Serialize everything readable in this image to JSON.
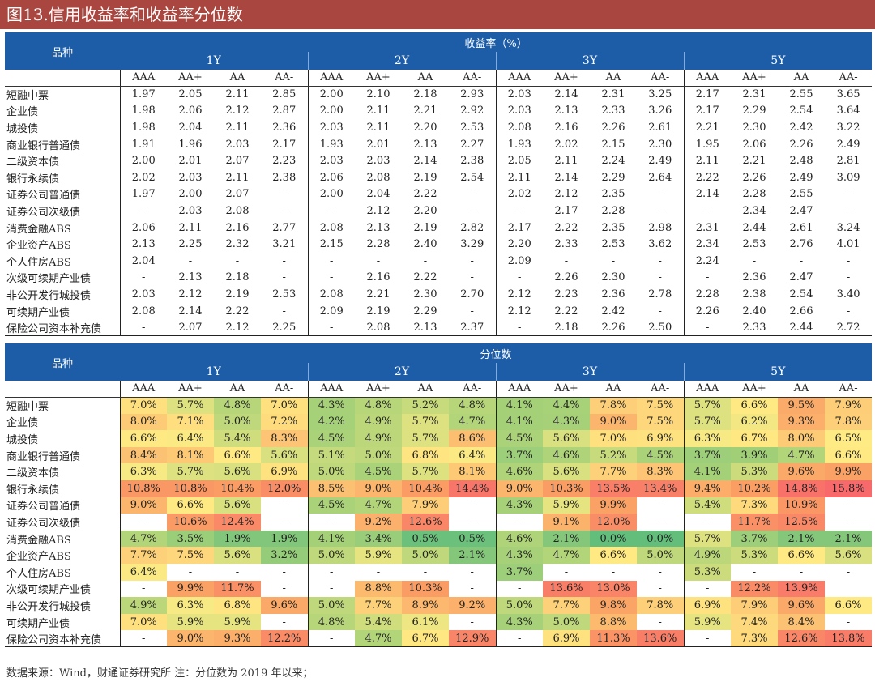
{
  "title": "图13.信用收益率和收益率分位数",
  "table1": {
    "corner": "品种",
    "section": "收益率（%）",
    "terms": [
      "1Y",
      "2Y",
      "3Y",
      "5Y"
    ],
    "ratings": [
      "AAA",
      "AA+",
      "AA",
      "AA-"
    ],
    "rows": [
      {
        "name": "短融中票",
        "v": [
          "1.97",
          "2.05",
          "2.11",
          "2.85",
          "2.00",
          "2.10",
          "2.18",
          "2.93",
          "2.03",
          "2.14",
          "2.31",
          "3.25",
          "2.17",
          "2.31",
          "2.55",
          "3.65"
        ]
      },
      {
        "name": "企业债",
        "v": [
          "1.98",
          "2.06",
          "2.12",
          "2.87",
          "2.00",
          "2.11",
          "2.21",
          "2.92",
          "2.03",
          "2.13",
          "2.33",
          "3.26",
          "2.17",
          "2.29",
          "2.54",
          "3.64"
        ]
      },
      {
        "name": "城投债",
        "v": [
          "1.98",
          "2.04",
          "2.11",
          "2.36",
          "2.03",
          "2.11",
          "2.20",
          "2.53",
          "2.08",
          "2.16",
          "2.26",
          "2.61",
          "2.21",
          "2.30",
          "2.42",
          "3.22"
        ]
      },
      {
        "name": "商业银行普通债",
        "v": [
          "1.91",
          "1.96",
          "2.03",
          "2.17",
          "1.93",
          "2.01",
          "2.13",
          "2.27",
          "1.93",
          "2.02",
          "2.15",
          "2.30",
          "1.95",
          "2.06",
          "2.26",
          "2.49"
        ]
      },
      {
        "name": "二级资本债",
        "v": [
          "2.00",
          "2.01",
          "2.07",
          "2.23",
          "2.03",
          "2.03",
          "2.14",
          "2.38",
          "2.05",
          "2.11",
          "2.24",
          "2.49",
          "2.11",
          "2.21",
          "2.48",
          "2.81"
        ]
      },
      {
        "name": "银行永续债",
        "v": [
          "2.02",
          "2.03",
          "2.11",
          "2.38",
          "2.06",
          "2.08",
          "2.19",
          "2.54",
          "2.11",
          "2.14",
          "2.29",
          "2.64",
          "2.22",
          "2.26",
          "2.49",
          "3.09"
        ]
      },
      {
        "name": "证券公司普通债",
        "v": [
          "1.97",
          "2.00",
          "2.07",
          "-",
          "2.00",
          "2.04",
          "2.22",
          "-",
          "2.02",
          "2.12",
          "2.35",
          "-",
          "2.14",
          "2.28",
          "2.55",
          "-"
        ]
      },
      {
        "name": "证券公司次级债",
        "v": [
          "-",
          "2.03",
          "2.08",
          "-",
          "-",
          "2.12",
          "2.20",
          "-",
          "-",
          "2.17",
          "2.28",
          "-",
          "-",
          "2.34",
          "2.47",
          "-"
        ]
      },
      {
        "name": "消费金融ABS",
        "v": [
          "2.06",
          "2.11",
          "2.16",
          "2.77",
          "2.08",
          "2.13",
          "2.19",
          "2.82",
          "2.17",
          "2.22",
          "2.35",
          "2.98",
          "2.31",
          "2.44",
          "2.61",
          "3.24"
        ]
      },
      {
        "name": "企业资产ABS",
        "v": [
          "2.13",
          "2.25",
          "2.32",
          "3.21",
          "2.15",
          "2.28",
          "2.40",
          "3.29",
          "2.20",
          "2.33",
          "2.53",
          "3.62",
          "2.34",
          "2.53",
          "2.76",
          "4.01"
        ]
      },
      {
        "name": "个人住房ABS",
        "v": [
          "2.04",
          "-",
          "-",
          "-",
          "-",
          "-",
          "-",
          "-",
          "2.09",
          "-",
          "-",
          "-",
          "2.24",
          "-",
          "-",
          "-"
        ]
      },
      {
        "name": "次级可续期产业债",
        "v": [
          "-",
          "2.13",
          "2.18",
          "-",
          "-",
          "2.16",
          "2.22",
          "-",
          "-",
          "2.26",
          "2.30",
          "-",
          "-",
          "2.36",
          "2.47",
          "-"
        ]
      },
      {
        "name": "非公开发行城投债",
        "v": [
          "2.03",
          "2.12",
          "2.19",
          "2.53",
          "2.08",
          "2.21",
          "2.30",
          "2.70",
          "2.12",
          "2.23",
          "2.36",
          "2.78",
          "2.28",
          "2.38",
          "2.54",
          "3.40"
        ]
      },
      {
        "name": "可续期产业债",
        "v": [
          "2.08",
          "2.14",
          "2.22",
          "-",
          "2.09",
          "2.19",
          "2.29",
          "-",
          "2.12",
          "2.22",
          "2.42",
          "-",
          "2.26",
          "2.40",
          "2.66",
          "-"
        ]
      },
      {
        "name": "保险公司资本补充债",
        "v": [
          "-",
          "2.07",
          "2.12",
          "2.25",
          "-",
          "2.08",
          "2.13",
          "2.37",
          "-",
          "2.18",
          "2.26",
          "2.50",
          "-",
          "2.33",
          "2.44",
          "2.72"
        ]
      }
    ]
  },
  "table2": {
    "corner": "品种",
    "section": "分位数",
    "terms": [
      "1Y",
      "2Y",
      "3Y",
      "5Y"
    ],
    "ratings": [
      "AAA",
      "AA+",
      "AA",
      "AA-"
    ],
    "rows": [
      {
        "name": "短融中票",
        "v": [
          "7.0%",
          "5.7%",
          "4.8%",
          "7.0%",
          "4.3%",
          "4.8%",
          "5.2%",
          "4.8%",
          "4.1%",
          "4.4%",
          "7.8%",
          "7.5%",
          "5.7%",
          "6.6%",
          "9.5%",
          "7.9%"
        ]
      },
      {
        "name": "企业债",
        "v": [
          "8.0%",
          "7.1%",
          "5.0%",
          "7.2%",
          "4.2%",
          "4.9%",
          "5.7%",
          "4.7%",
          "4.1%",
          "4.3%",
          "9.0%",
          "7.5%",
          "5.7%",
          "6.2%",
          "9.3%",
          "7.8%"
        ]
      },
      {
        "name": "城投债",
        "v": [
          "6.6%",
          "6.4%",
          "5.4%",
          "8.3%",
          "4.5%",
          "4.9%",
          "5.7%",
          "8.6%",
          "4.5%",
          "5.6%",
          "7.0%",
          "6.9%",
          "6.3%",
          "6.7%",
          "8.0%",
          "6.5%"
        ]
      },
      {
        "name": "商业银行普通债",
        "v": [
          "8.4%",
          "8.1%",
          "6.6%",
          "5.6%",
          "5.1%",
          "5.0%",
          "6.8%",
          "6.4%",
          "3.7%",
          "4.6%",
          "5.2%",
          "4.5%",
          "3.7%",
          "3.9%",
          "4.7%",
          "6.6%"
        ]
      },
      {
        "name": "二级资本债",
        "v": [
          "6.3%",
          "5.7%",
          "5.6%",
          "6.9%",
          "5.0%",
          "4.5%",
          "5.7%",
          "8.1%",
          "4.6%",
          "5.6%",
          "7.7%",
          "8.3%",
          "4.1%",
          "5.3%",
          "9.6%",
          "9.9%"
        ]
      },
      {
        "name": "银行永续债",
        "v": [
          "10.8%",
          "10.8%",
          "10.4%",
          "12.0%",
          "8.5%",
          "9.0%",
          "10.4%",
          "14.4%",
          "9.0%",
          "10.3%",
          "13.5%",
          "13.4%",
          "9.4%",
          "10.2%",
          "14.8%",
          "15.8%"
        ]
      },
      {
        "name": "证券公司普通债",
        "v": [
          "9.0%",
          "6.6%",
          "5.6%",
          "-",
          "4.5%",
          "4.7%",
          "7.9%",
          "-",
          "4.3%",
          "5.9%",
          "9.9%",
          "-",
          "5.4%",
          "7.3%",
          "10.9%",
          "-"
        ]
      },
      {
        "name": "证券公司次级债",
        "v": [
          "-",
          "10.6%",
          "12.4%",
          "-",
          "-",
          "9.2%",
          "12.6%",
          "-",
          "-",
          "9.1%",
          "12.0%",
          "-",
          "-",
          "11.7%",
          "12.5%",
          "-"
        ]
      },
      {
        "name": "消费金融ABS",
        "v": [
          "4.7%",
          "3.5%",
          "1.9%",
          "1.9%",
          "4.1%",
          "3.4%",
          "0.5%",
          "0.5%",
          "4.6%",
          "2.1%",
          "0.0%",
          "0.0%",
          "5.7%",
          "3.7%",
          "2.1%",
          "2.1%"
        ]
      },
      {
        "name": "企业资产ABS",
        "v": [
          "7.7%",
          "7.5%",
          "5.6%",
          "3.2%",
          "5.0%",
          "5.9%",
          "5.0%",
          "2.1%",
          "4.3%",
          "4.7%",
          "6.6%",
          "5.0%",
          "4.9%",
          "5.3%",
          "6.6%",
          "5.6%"
        ]
      },
      {
        "name": "个人住房ABS",
        "v": [
          "6.4%",
          "-",
          "-",
          "-",
          "-",
          "-",
          "-",
          "-",
          "3.7%",
          "-",
          "-",
          "-",
          "5.3%",
          "-",
          "-",
          "-"
        ]
      },
      {
        "name": "次级可续期产业债",
        "v": [
          "-",
          "9.9%",
          "11.7%",
          "-",
          "-",
          "8.8%",
          "10.3%",
          "-",
          "-",
          "13.6%",
          "13.0%",
          "-",
          "-",
          "12.2%",
          "13.9%",
          ""
        ]
      },
      {
        "name": "非公开发行城投债",
        "v": [
          "4.9%",
          "6.3%",
          "6.8%",
          "9.6%",
          "5.0%",
          "7.7%",
          "8.9%",
          "9.2%",
          "5.0%",
          "7.7%",
          "9.8%",
          "7.8%",
          "6.9%",
          "7.9%",
          "9.6%",
          "6.6%"
        ]
      },
      {
        "name": "可续期产业债",
        "v": [
          "7.0%",
          "5.9%",
          "5.9%",
          "-",
          "4.8%",
          "5.4%",
          "6.1%",
          "-",
          "4.3%",
          "5.0%",
          "8.8%",
          "-",
          "5.9%",
          "7.4%",
          "8.4%",
          "-"
        ]
      },
      {
        "name": "保险公司资本补充债",
        "v": [
          "-",
          "9.0%",
          "9.3%",
          "12.2%",
          "-",
          "4.7%",
          "6.7%",
          "12.9%",
          "-",
          "6.9%",
          "11.3%",
          "13.6%",
          "-",
          "7.3%",
          "12.6%",
          "13.8%"
        ]
      }
    ]
  },
  "footer": "数据来源：Wind，财通证券研究所   注：分位数为 2019 年以来；"
}
